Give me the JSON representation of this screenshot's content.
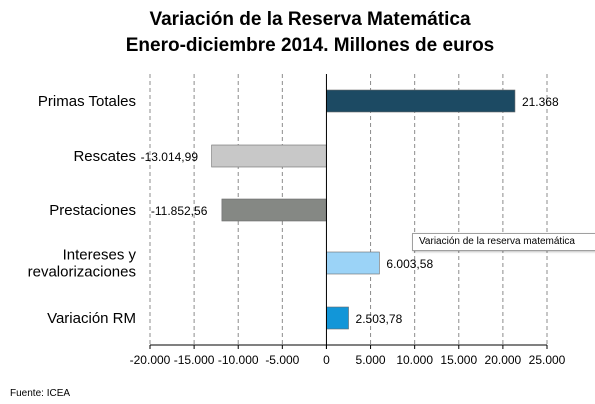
{
  "chart_data": {
    "type": "bar",
    "orientation": "horizontal",
    "title": "Variación de la Reserva Matemática",
    "subtitle": "Enero-diciembre 2014. Millones de euros",
    "categories": [
      "Primas Totales",
      "Rescates",
      "Prestaciones",
      "Intereses y revalorizaciones",
      "Variación RM"
    ],
    "category_lines": [
      [
        "Primas Totales"
      ],
      [
        "Rescates"
      ],
      [
        "Prestaciones"
      ],
      [
        "Intereses y",
        "revalorizaciones"
      ],
      [
        "Variación RM"
      ]
    ],
    "values": [
      21368,
      -13014.99,
      -11852.56,
      6003.58,
      2503.78
    ],
    "data_labels": [
      "21.368",
      "-13.014,99",
      "-11.852,56",
      "6.003,58",
      "2.503,78"
    ],
    "colors": [
      "#1c4a63",
      "#c8c8c8",
      "#858884",
      "#9bd3f7",
      "#1296d8"
    ],
    "xlim": [
      -20000,
      25000
    ],
    "xticks": [
      -20000,
      -15000,
      -10000,
      -5000,
      0,
      5000,
      10000,
      15000,
      20000,
      25000
    ],
    "xtick_labels": [
      "-20.000",
      "-15.000",
      "-10.000",
      "-5.000",
      "0",
      "5.000",
      "10.000",
      "15.000",
      "20.000",
      "25.000"
    ],
    "grid": "vertical dashed",
    "legend": "none"
  },
  "tooltip": {
    "text": "Variación de la reserva matemática"
  },
  "source": "Fuente: ICEA"
}
